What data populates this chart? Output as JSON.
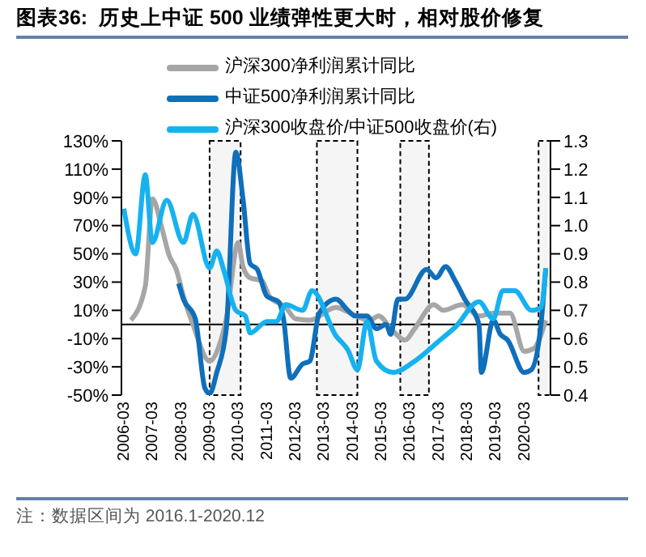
{
  "chart_data": {
    "type": "line",
    "title": "图表36:  历史上中证 500 业绩弹性更大时，相对股价修复",
    "legend": "top",
    "marker": "none",
    "line_style": "solid",
    "xlim": [
      "2006-02",
      "2021-02"
    ],
    "xticks": [
      "2006-03",
      "2007-03",
      "2008-03",
      "2009-03",
      "2010-03",
      "2011-03",
      "2012-03",
      "2013-03",
      "2014-03",
      "2015-03",
      "2016-03",
      "2017-03",
      "2018-03",
      "2019-03",
      "2020-03"
    ],
    "ylim": [
      -50,
      130
    ],
    "yticks": [
      {
        "value": -50,
        "label": "-50%"
      },
      {
        "value": -30,
        "label": "-30%"
      },
      {
        "value": -10,
        "label": "-10%"
      },
      {
        "value": 10,
        "label": "10%"
      },
      {
        "value": 30,
        "label": "30%"
      },
      {
        "value": 50,
        "label": "50%"
      },
      {
        "value": 70,
        "label": "70%"
      },
      {
        "value": 90,
        "label": "90%"
      },
      {
        "value": 110,
        "label": "110%"
      },
      {
        "value": 130,
        "label": "130%"
      }
    ],
    "y2lim": [
      0.4,
      1.3
    ],
    "y2ticks": [
      0.4,
      0.5,
      0.6,
      0.7,
      0.8,
      0.9,
      {
        "value": 1,
        "label": "1.0"
      },
      1.1,
      1.2,
      1.3
    ],
    "series": [
      {
        "name": "沪深300净利润累计同比",
        "color": "#a6a6a6",
        "x": [
          "2006-06",
          "2006-12",
          "2007-03",
          "2007-07",
          "2007-10",
          "2008-01",
          "2008-04",
          "2008-08",
          "2009-03",
          "2009-07",
          "2009-10",
          "2010-03",
          "2010-05",
          "2010-08",
          "2011-01",
          "2011-04",
          "2011-11",
          "2012-03",
          "2012-09",
          "2013-08",
          "2014-02",
          "2014-10",
          "2015-02",
          "2015-07",
          "2016-01",
          "2016-05",
          "2017-01",
          "2017-05",
          "2018-01",
          "2018-08",
          "2019-02",
          "2019-09",
          "2020-03",
          "2020-07",
          "2020-12"
        ],
        "values": [
          3,
          27,
          89,
          68,
          49,
          39,
          20,
          0,
          -26,
          -15,
          4,
          58,
          41,
          33,
          31,
          20,
          12,
          4,
          3,
          12,
          8,
          3,
          6,
          -3,
          -11,
          -3,
          14,
          10,
          14,
          6,
          8,
          8,
          -19,
          -17,
          3
        ]
      },
      {
        "name": "中证500净利润累计同比",
        "color": "#0f6fba",
        "x": [
          "2008-02",
          "2008-04",
          "2008-09",
          "2009-01",
          "2009-03",
          "2009-06",
          "2009-10",
          "2010-02",
          "2010-05",
          "2010-08",
          "2010-11",
          "2011-03",
          "2011-08",
          "2011-10",
          "2012-01",
          "2012-06",
          "2012-09",
          "2013-01",
          "2013-08",
          "2014-01",
          "2014-04",
          "2014-09",
          "2015-01",
          "2015-05",
          "2015-07",
          "2015-10",
          "2016-01",
          "2016-10",
          "2017-02",
          "2017-06",
          "2017-10",
          "2018-02",
          "2018-08",
          "2018-09",
          "2019-02",
          "2019-05",
          "2019-08",
          "2020-03",
          "2020-06",
          "2020-10",
          "2020-12"
        ],
        "values": [
          29,
          18,
          4,
          -45,
          -49,
          -34,
          -3,
          122,
          89,
          43,
          39,
          20,
          16,
          4,
          -38,
          -28,
          -26,
          8,
          18,
          10,
          6,
          6,
          -3,
          0,
          -7,
          18,
          18,
          39,
          33,
          41,
          31,
          18,
          0,
          -34,
          3,
          -7,
          -11,
          -34,
          -32,
          0,
          39
        ]
      },
      {
        "name": "沪深300收盘价/中证500收盘价(右)",
        "color": "#16b2ef",
        "axis": "y2",
        "x": [
          "2006-03",
          "2006-08",
          "2006-12",
          "2007-03",
          "2007-09",
          "2008-04",
          "2008-08",
          "2009-03",
          "2009-06",
          "2009-09",
          "2010-02",
          "2010-06",
          "2010-08",
          "2011-03",
          "2011-07",
          "2011-11",
          "2012-06",
          "2012-10",
          "2013-08",
          "2014-01",
          "2014-05",
          "2014-09",
          "2015-01",
          "2015-08",
          "2016-05",
          "2017-03",
          "2017-10",
          "2018-08",
          "2019-02",
          "2019-06",
          "2019-11",
          "2020-06",
          "2020-10",
          "2020-12"
        ],
        "values": [
          1.06,
          0.9,
          1.18,
          0.94,
          1.09,
          0.94,
          1.04,
          0.85,
          0.91,
          0.84,
          0.7,
          0.68,
          0.62,
          0.66,
          0.66,
          0.72,
          0.7,
          0.77,
          0.61,
          0.56,
          0.49,
          0.66,
          0.52,
          0.48,
          0.52,
          0.59,
          0.64,
          0.73,
          0.67,
          0.77,
          0.77,
          0.7,
          0.71,
          0.85
        ]
      }
    ],
    "ref_lines": [
      {
        "axis": "y",
        "value": 0,
        "color": "#000000"
      }
    ],
    "bands": [
      {
        "axis": "x",
        "from": "2009-03",
        "to": "2010-04",
        "color": "#000000"
      },
      {
        "axis": "x",
        "from": "2012-12",
        "to": "2014-05",
        "color": "#000000"
      },
      {
        "axis": "x",
        "from": "2015-11",
        "to": "2016-11",
        "color": "#000000"
      },
      {
        "axis": "x",
        "from": "2020-09",
        "to": "2021-02",
        "color": "#000000"
      }
    ],
    "annotations": [
      "注：数据区间为 2016.1-2020.12"
    ]
  }
}
